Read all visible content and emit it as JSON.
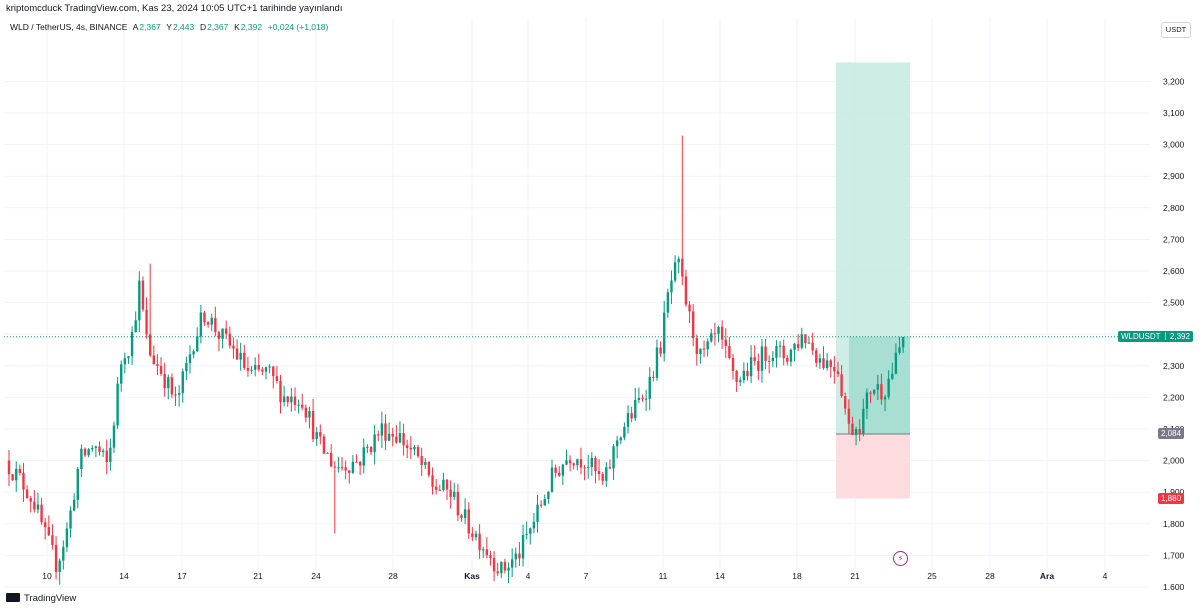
{
  "header": {
    "published": "kriptomcduck TradingView.com, Kas 23, 2024 10:05 UTC+1 tarihinde yayınlandı"
  },
  "legend": {
    "symbol": "WLD / TetherUS, 4s, BINANCE",
    "open_label": "A",
    "open": "2,367",
    "high_label": "Y",
    "high": "2,443",
    "low_label": "D",
    "low": "2,367",
    "close_label": "K",
    "close": "2,392",
    "change": "+0,024 (+1,018)"
  },
  "price_axis": {
    "currency": "USDT",
    "ticks": [
      "3,200",
      "3,100",
      "3,000",
      "2,900",
      "2,800",
      "2,700",
      "2,600",
      "2,500",
      "2,400",
      "2,300",
      "2,200",
      "2,100",
      "2,000",
      "1,900",
      "1,800",
      "1,700",
      "1,600"
    ],
    "current_symbol": "WLDUSDT",
    "current_price": "2,392",
    "entry_price": "2,084",
    "stop_price": "1,880"
  },
  "time_axis": {
    "ticks": [
      {
        "label": "10",
        "bold": false
      },
      {
        "label": "14",
        "bold": false
      },
      {
        "label": "17",
        "bold": false
      },
      {
        "label": "21",
        "bold": false
      },
      {
        "label": "24",
        "bold": false
      },
      {
        "label": "28",
        "bold": false
      },
      {
        "label": "Kas",
        "bold": true
      },
      {
        "label": "4",
        "bold": false
      },
      {
        "label": "7",
        "bold": false
      },
      {
        "label": "11",
        "bold": false
      },
      {
        "label": "14",
        "bold": false
      },
      {
        "label": "18",
        "bold": false
      },
      {
        "label": "21",
        "bold": false
      },
      {
        "label": "25",
        "bold": false
      },
      {
        "label": "28",
        "bold": false
      },
      {
        "label": "Ara",
        "bold": true
      },
      {
        "label": "4",
        "bold": false
      }
    ]
  },
  "footer": {
    "brand": "TradingView"
  },
  "colors": {
    "up": "#089981",
    "down": "#f23645",
    "profit_zone": "#c8ebe3",
    "loss_zone": "#fcd8db",
    "current": "#089981",
    "entry": "#787b86",
    "stop": "#f23645"
  },
  "chart_data": {
    "type": "candlestick",
    "title": "WLD / TetherUS, 4s, BINANCE",
    "ylim": [
      1.57,
      3.26
    ],
    "position": {
      "entry": 2.084,
      "target": 3.26,
      "stop": 1.88
    },
    "waypoints": [
      [
        0,
        2.0
      ],
      [
        6,
        1.93
      ],
      [
        10,
        1.87
      ],
      [
        14,
        1.76
      ],
      [
        18,
        1.67
      ],
      [
        22,
        1.79
      ],
      [
        26,
        2.0
      ],
      [
        31,
        2.05
      ],
      [
        36,
        1.98
      ],
      [
        41,
        2.34
      ],
      [
        44,
        2.37
      ],
      [
        47,
        2.55
      ],
      [
        50,
        2.35
      ],
      [
        55,
        2.28
      ],
      [
        60,
        2.18
      ],
      [
        66,
        2.38
      ],
      [
        70,
        2.47
      ],
      [
        75,
        2.4
      ],
      [
        80,
        2.35
      ],
      [
        86,
        2.27
      ],
      [
        92,
        2.28
      ],
      [
        98,
        2.2
      ],
      [
        104,
        2.2
      ],
      [
        110,
        2.05
      ],
      [
        116,
        1.98
      ],
      [
        124,
        2.0
      ],
      [
        132,
        2.1
      ],
      [
        138,
        2.08
      ],
      [
        145,
        2.0
      ],
      [
        150,
        1.92
      ],
      [
        156,
        1.9
      ],
      [
        162,
        1.8
      ],
      [
        168,
        1.73
      ],
      [
        174,
        1.65
      ],
      [
        180,
        1.7
      ],
      [
        186,
        1.82
      ],
      [
        192,
        1.95
      ],
      [
        198,
        2.02
      ],
      [
        204,
        2.0
      ],
      [
        210,
        1.92
      ],
      [
        215,
        2.08
      ],
      [
        220,
        2.15
      ],
      [
        226,
        2.25
      ],
      [
        230,
        2.37
      ],
      [
        233,
        2.55
      ],
      [
        236,
        2.62
      ],
      [
        240,
        2.45
      ],
      [
        244,
        2.32
      ],
      [
        250,
        2.4
      ],
      [
        256,
        2.25
      ],
      [
        262,
        2.3
      ],
      [
        268,
        2.35
      ],
      [
        274,
        2.33
      ],
      [
        280,
        2.4
      ],
      [
        286,
        2.32
      ],
      [
        292,
        2.3
      ],
      [
        296,
        2.1
      ],
      [
        300,
        2.12
      ],
      [
        304,
        2.24
      ],
      [
        308,
        2.22
      ],
      [
        312,
        2.3
      ],
      [
        315,
        2.39
      ]
    ]
  }
}
